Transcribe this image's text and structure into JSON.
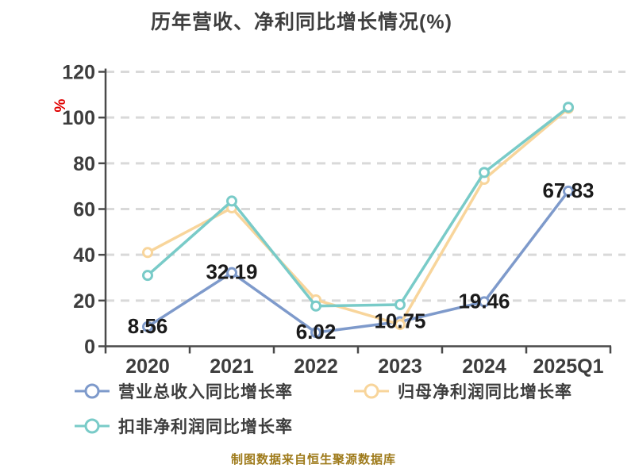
{
  "title": "历年营收、净利同比增长情况(%)",
  "caption": "制图数据来自恒生聚源数据库",
  "chart_data": {
    "type": "line",
    "title": "历年营收、净利同比增长情况(%)",
    "xlabel": "",
    "ylabel": "%",
    "ylabel_color": "#e00000",
    "categories": [
      "2020",
      "2021",
      "2022",
      "2023",
      "2024",
      "2025Q1"
    ],
    "ylim": [
      0,
      120
    ],
    "ytick_step": 20,
    "yticks": [
      0,
      20,
      40,
      60,
      80,
      100,
      120
    ],
    "grid": "horizontal-dashed",
    "legend_position": "bottom-left",
    "series": [
      {
        "name": "营业总收入同比增长率",
        "color": "#7e9acb",
        "values": [
          8.56,
          32.19,
          6.02,
          10.75,
          19.46,
          67.83
        ],
        "labels": [
          "8.56",
          "32.19",
          "6.02",
          "10.75",
          "19.46",
          "67.83"
        ]
      },
      {
        "name": "归母净利润同比增长率",
        "color": "#f8d59b",
        "values": [
          41,
          60.5,
          20.3,
          9.5,
          73,
          104
        ]
      },
      {
        "name": "扣非净利润同比增长率",
        "color": "#79cbc8",
        "values": [
          31,
          63.5,
          17.6,
          18.2,
          76,
          104.5
        ]
      }
    ],
    "colors": {
      "axis": "#4a4a4a",
      "gridline": "#d9d9d9",
      "tick_label": "#3d3d3d",
      "data_label": "#1a1a1a",
      "title": "#3f3f3f",
      "background": "#ffffff"
    }
  }
}
